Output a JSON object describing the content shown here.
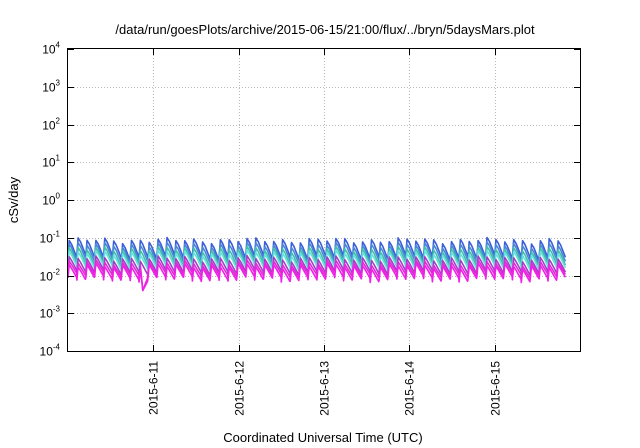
{
  "chart_data": {
    "type": "line",
    "title": "/data/run/goesPlots/archive/2015-06-15/21:00/flux/../bryn/5daysMars.plot",
    "xlabel": "Coordinated Universal Time (UTC)",
    "ylabel": "cSv/day",
    "y_scale": "log",
    "ylim": [
      0.0001,
      10000
    ],
    "y_ticks": [
      {
        "value": 0.0001,
        "base": "10",
        "exp": "-4"
      },
      {
        "value": 0.001,
        "base": "10",
        "exp": "-3"
      },
      {
        "value": 0.01,
        "base": "10",
        "exp": "-2"
      },
      {
        "value": 0.1,
        "base": "10",
        "exp": "-1"
      },
      {
        "value": 1,
        "base": "10",
        "exp": "0"
      },
      {
        "value": 10,
        "base": "10",
        "exp": "1"
      },
      {
        "value": 100,
        "base": "10",
        "exp": "2"
      },
      {
        "value": 1000,
        "base": "10",
        "exp": "3"
      },
      {
        "value": 10000,
        "base": "10",
        "exp": "4"
      }
    ],
    "xlim": [
      "2015-06-10T00:00",
      "2015-06-16T00:00"
    ],
    "x_ticks": [
      {
        "date": "2015-06-11T00:00",
        "label": "2015-6-11"
      },
      {
        "date": "2015-06-12T00:00",
        "label": "2015-6-12"
      },
      {
        "date": "2015-06-13T00:00",
        "label": "2015-6-13"
      },
      {
        "date": "2015-06-14T00:00",
        "label": "2015-6-14"
      },
      {
        "date": "2015-06-15T00:00",
        "label": "2015-6-15"
      }
    ],
    "grid": true,
    "legend": "none",
    "series": [
      {
        "color": "#3a5fd9",
        "peak": 0.085,
        "trough": 0.03
      },
      {
        "color": "#4a88d6",
        "peak": 0.065,
        "trough": 0.024
      },
      {
        "color": "#3fc2a8",
        "peak": 0.05,
        "trough": 0.019
      },
      {
        "color": "#67e0df",
        "peak": 0.04,
        "trough": 0.016
      },
      {
        "color": "#a33fc4",
        "peak": 0.028,
        "trough": 0.012
      },
      {
        "color": "#e22ad6",
        "peak": 0.022,
        "trough": 0.01
      },
      {
        "color": "#f020e8",
        "peak": 0.018,
        "trough": 0.008
      }
    ],
    "pattern": {
      "cycle_hours": 2.5,
      "x_start": "2015-06-10T00:00",
      "x_end": "2015-06-15T21:00",
      "dip": {
        "date": "2015-06-10T21:30",
        "value": 0.004
      }
    }
  }
}
